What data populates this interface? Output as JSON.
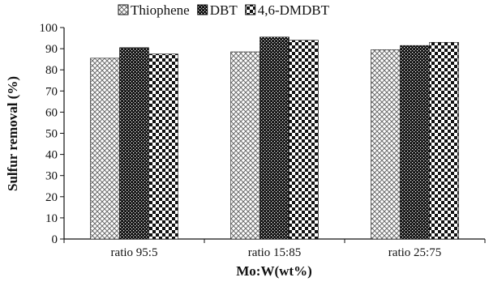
{
  "chart_data": {
    "type": "bar",
    "title": "",
    "xlabel": "Mo:W(wt%)",
    "ylabel": "Sulfur removal (%)",
    "categories": [
      "ratio 95:5",
      "ratio 15:85",
      "ratio 25:75"
    ],
    "ylim": [
      0,
      100
    ],
    "yticks": [
      0,
      10,
      20,
      30,
      40,
      50,
      60,
      70,
      80,
      90,
      100
    ],
    "grid": false,
    "legend_position": "top",
    "series": [
      {
        "name": "Thiophene",
        "values": [
          85.5,
          88.5,
          89.5
        ],
        "pattern": "light-diamond-hatch"
      },
      {
        "name": "DBT",
        "values": [
          90.5,
          95.5,
          91.5
        ],
        "pattern": "dark-dots"
      },
      {
        "name": "4,6-DMDBT",
        "values": [
          87.5,
          94,
          93
        ],
        "pattern": "checkerboard"
      }
    ]
  }
}
